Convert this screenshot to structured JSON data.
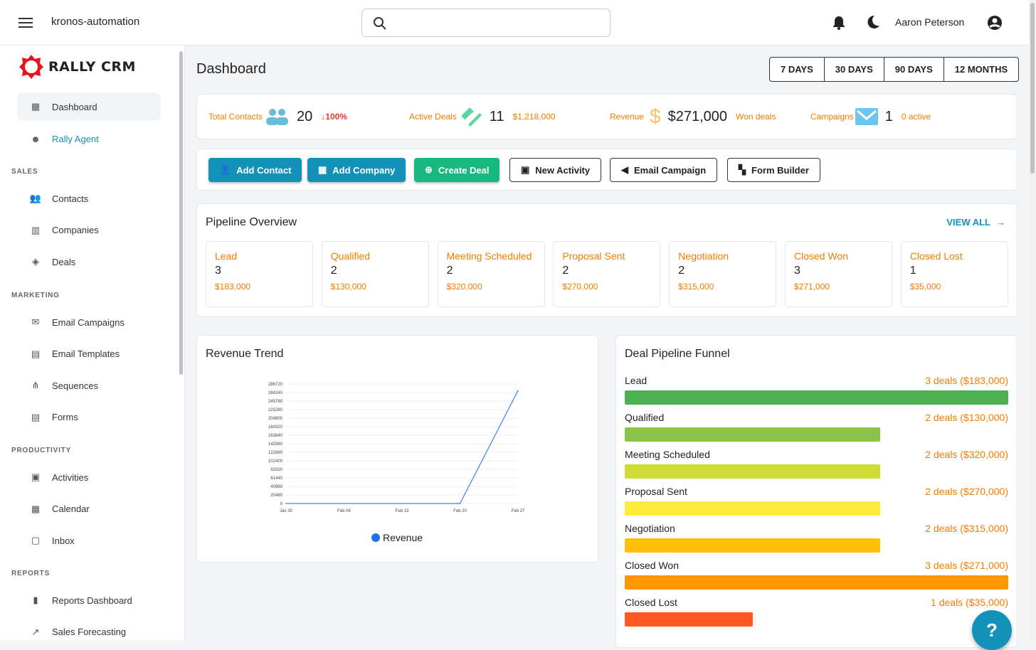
{
  "app": {
    "name": "kronos-automation",
    "user": "Aaron Peterson",
    "logo": "RALLY CRM"
  },
  "sidebar": {
    "items": [
      {
        "label": "Dashboard",
        "icon": "dashboard-icon"
      },
      {
        "label": "Rally Agent",
        "icon": "robot-icon"
      }
    ],
    "sections": [
      {
        "title": "SALES",
        "items": [
          {
            "label": "Contacts"
          },
          {
            "label": "Companies"
          },
          {
            "label": "Deals"
          }
        ]
      },
      {
        "title": "MARKETING",
        "items": [
          {
            "label": "Email Campaigns"
          },
          {
            "label": "Email Templates"
          },
          {
            "label": "Sequences"
          },
          {
            "label": "Forms"
          }
        ]
      },
      {
        "title": "PRODUCTIVITY",
        "items": [
          {
            "label": "Activities"
          },
          {
            "label": "Calendar"
          },
          {
            "label": "Inbox"
          }
        ]
      },
      {
        "title": "REPORTS",
        "items": [
          {
            "label": "Reports Dashboard"
          },
          {
            "label": "Sales Forecasting"
          }
        ]
      }
    ]
  },
  "page": {
    "title": "Dashboard",
    "ranges": [
      "7 DAYS",
      "30 DAYS",
      "90 DAYS",
      "12 MONTHS"
    ]
  },
  "stats": [
    {
      "label": "Total Contacts",
      "value": "20",
      "sub": "↓100%"
    },
    {
      "label": "Active Deals",
      "value": "11",
      "sub": "$1,218,000"
    },
    {
      "label": "Revenue",
      "value": "$271,000",
      "sub": "Won deals"
    },
    {
      "label": "Campaigns",
      "value": "1",
      "sub": "0 active"
    }
  ],
  "actions": [
    "Add Contact",
    "Add Company",
    "Create Deal",
    "New Activity",
    "Email Campaign",
    "Form Builder"
  ],
  "pipeline": {
    "title": "Pipeline Overview",
    "view_all": "VIEW ALL",
    "stages": [
      {
        "name": "Lead",
        "count": "3",
        "amount": "$183,000"
      },
      {
        "name": "Qualified",
        "count": "2",
        "amount": "$130,000"
      },
      {
        "name": "Meeting Scheduled",
        "count": "2",
        "amount": "$320,000"
      },
      {
        "name": "Proposal Sent",
        "count": "2",
        "amount": "$270,000"
      },
      {
        "name": "Negotiation",
        "count": "2",
        "amount": "$315,000"
      },
      {
        "name": "Closed Won",
        "count": "3",
        "amount": "$271,000"
      },
      {
        "name": "Closed Lost",
        "count": "1",
        "amount": "$35,000"
      }
    ]
  },
  "funnel": {
    "title": "Deal Pipeline Funnel",
    "rows": [
      {
        "name": "Lead",
        "label": "3 deals ($183,000)",
        "count": 3,
        "color": "#4caf50"
      },
      {
        "name": "Qualified",
        "label": "2 deals ($130,000)",
        "count": 2,
        "color": "#8bc34a"
      },
      {
        "name": "Meeting Scheduled",
        "label": "2 deals ($320,000)",
        "count": 2,
        "color": "#cddc39"
      },
      {
        "name": "Proposal Sent",
        "label": "2 deals ($270,000)",
        "count": 2,
        "color": "#ffeb3b"
      },
      {
        "name": "Negotiation",
        "label": "2 deals ($315,000)",
        "count": 2,
        "color": "#ffc107"
      },
      {
        "name": "Closed Won",
        "label": "3 deals ($271,000)",
        "count": 3,
        "color": "#ff9800"
      },
      {
        "name": "Closed Lost",
        "label": "1 deals ($35,000)",
        "count": 1,
        "color": "#ff5722"
      }
    ]
  },
  "help": "?",
  "chart_data": {
    "type": "line",
    "title": "Revenue Trend",
    "x": [
      "Jan 30",
      "Feb 06",
      "Feb 13",
      "Feb 20",
      "Feb 27"
    ],
    "series": [
      {
        "name": "Revenue",
        "values": [
          0,
          0,
          0,
          0,
          271000
        ],
        "color": "#3b82f6"
      }
    ],
    "yticks": [
      0,
      20480,
      40960,
      61440,
      81920,
      102400,
      122880,
      143360,
      163840,
      184320,
      204800,
      225280,
      245760,
      266240,
      286720
    ],
    "ylim": [
      0,
      286720
    ],
    "legend": "bottom"
  }
}
